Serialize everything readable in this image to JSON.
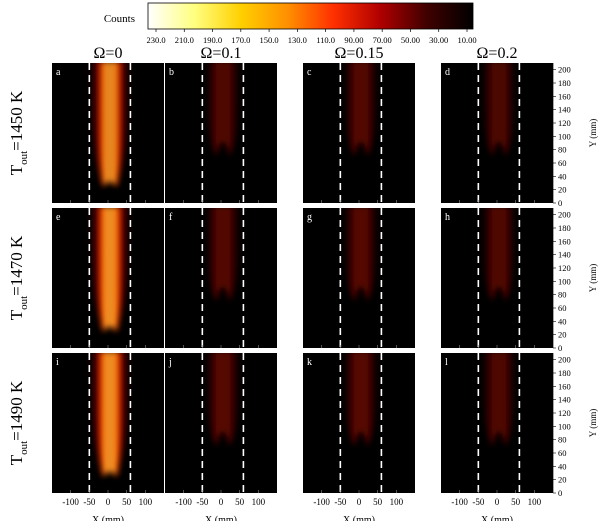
{
  "chart_data": {
    "type": "heatmap",
    "colorbar": {
      "label": "Counts",
      "ticks": [
        "230.0",
        "210.0",
        "190.0",
        "170.0",
        "150.0",
        "130.0",
        "110.0",
        "90.00",
        "70.00",
        "50.00",
        "30.00",
        "10.00"
      ],
      "range": [
        230,
        10
      ],
      "colors": [
        "#ffffff",
        "#ffff80",
        "#ffd000",
        "#ff9000",
        "#ff3000",
        "#b00000",
        "#400000",
        "#000000"
      ]
    },
    "columns": [
      "Ω=0",
      "Ω=0.1",
      "Ω=0.15",
      "Ω=0.2"
    ],
    "rows": [
      {
        "label_main": "T",
        "label_sub": "out",
        "label_rest": "=1450 K"
      },
      {
        "label_main": "T",
        "label_sub": "out",
        "label_rest": "=1470 K"
      },
      {
        "label_main": "T",
        "label_sub": "out",
        "label_rest": "=1490 K"
      }
    ],
    "panel_letters": [
      "a",
      "b",
      "c",
      "d",
      "e",
      "f",
      "g",
      "h",
      "i",
      "j",
      "k",
      "l"
    ],
    "panel_intensity": [
      [
        0.62,
        0.3,
        0.33,
        0.27
      ],
      [
        0.8,
        0.33,
        0.34,
        0.3
      ],
      [
        0.92,
        0.35,
        0.35,
        0.29
      ]
    ],
    "x_axis": {
      "label": "X (mm)",
      "ticks": [
        -100,
        -50,
        0,
        50,
        100
      ],
      "range": [
        -150,
        150
      ]
    },
    "y_axis": {
      "label": "Y (mm)",
      "ticks": [
        0,
        20,
        40,
        60,
        80,
        100,
        120,
        140,
        160,
        180,
        200
      ],
      "range": [
        0,
        210
      ],
      "side": "right"
    },
    "dashed_lines_x": [
      -50,
      60
    ],
    "flame_extent_x": [
      -45,
      55
    ],
    "grid": false
  }
}
